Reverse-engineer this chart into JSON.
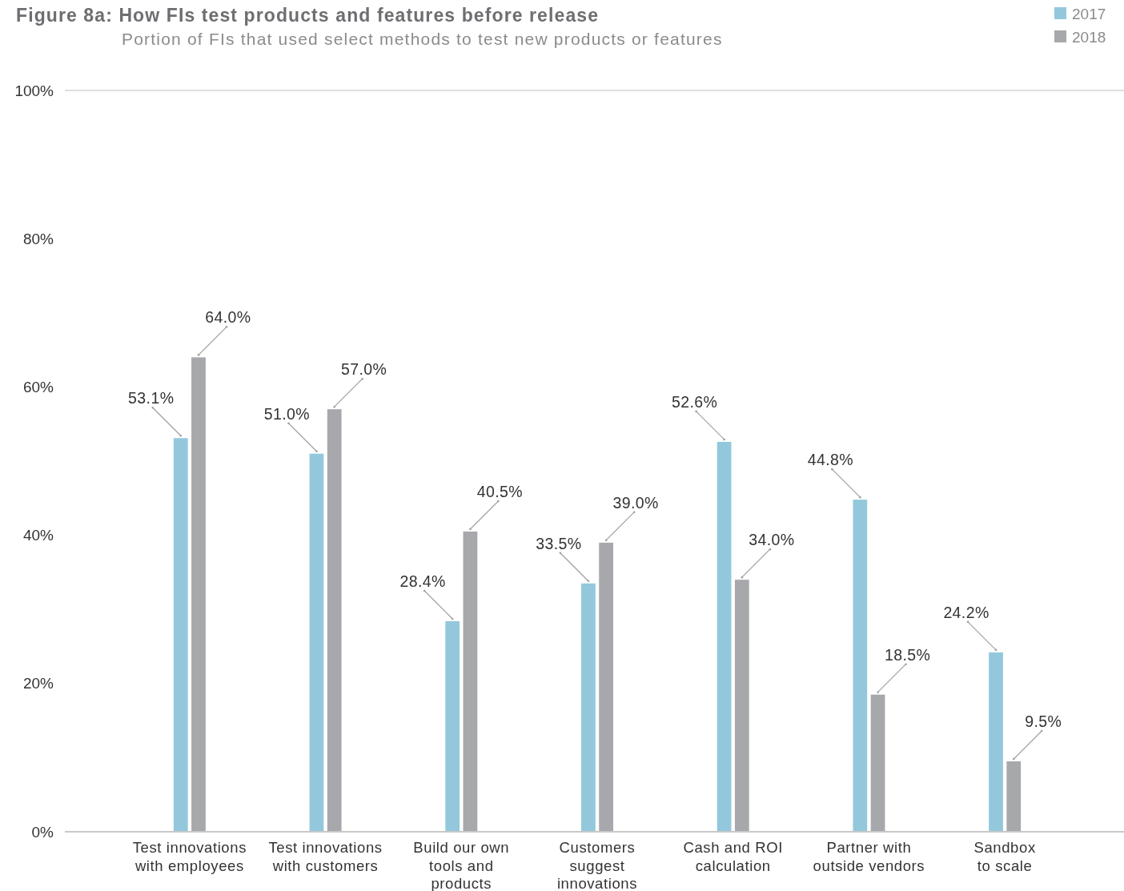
{
  "chart_data": {
    "type": "bar",
    "title": "Figure 8a: How FIs test products and features before release",
    "subtitle": "Portion of FIs that used select methods to test new products or features",
    "categories": [
      "Test innovations\nwith employees",
      "Test innovations\nwith customers",
      "Build our own\ntools and\nproducts",
      "Customers\nsuggest\ninnovations",
      "Cash and ROI\ncalculation",
      "Partner with\noutside vendors",
      "Sandbox\nto scale"
    ],
    "series": [
      {
        "name": "2017",
        "color": "#93c8dc",
        "values": [
          53.1,
          51.0,
          28.4,
          33.5,
          52.6,
          44.8,
          24.2
        ],
        "value_labels": [
          "53.1%",
          "51.0%",
          "28.4%",
          "33.5%",
          "52.6%",
          "44.8%",
          "24.2%"
        ]
      },
      {
        "name": "2018",
        "color": "#a7a8ab",
        "values": [
          64.0,
          57.0,
          40.5,
          39.0,
          34.0,
          18.5,
          9.5
        ],
        "value_labels": [
          "64.0%",
          "57.0%",
          "40.5%",
          "39.0%",
          "34.0%",
          "18.5%",
          "9.5%"
        ]
      }
    ],
    "ylim": [
      0,
      100
    ],
    "yticks": [
      {
        "value": 0,
        "label": "0%"
      },
      {
        "value": 20,
        "label": "20%"
      },
      {
        "value": 40,
        "label": "40%"
      },
      {
        "value": 60,
        "label": "60%"
      },
      {
        "value": 80,
        "label": "80%"
      },
      {
        "value": 100,
        "label": "100%"
      }
    ],
    "legend": "top right"
  }
}
